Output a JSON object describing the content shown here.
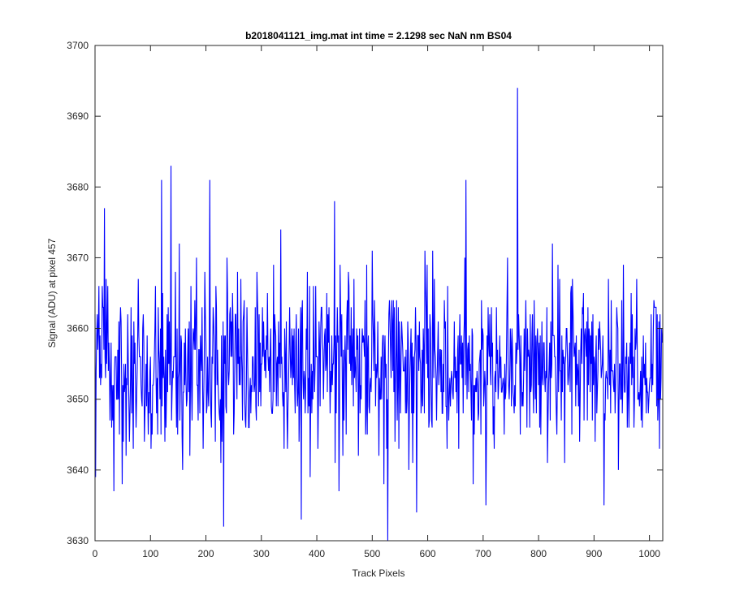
{
  "chart_data": {
    "type": "line",
    "title": "b2018041121_img.mat int time = 2.1298 sec  NaN nm BS04",
    "xlabel": "Track Pixels",
    "ylabel": "Signal (ADU) at pixel 457",
    "xlim": [
      0,
      1024
    ],
    "ylim": [
      3630,
      3700
    ],
    "xticks": [
      0,
      100,
      200,
      300,
      400,
      500,
      600,
      700,
      800,
      900,
      1000
    ],
    "yticks": [
      3630,
      3640,
      3650,
      3660,
      3670,
      3680,
      3690,
      3700
    ],
    "grid": false,
    "legend": "none",
    "box": true,
    "series": [
      {
        "color": "#0000ff",
        "n_points": 1024,
        "mean": 3655,
        "approx_std": 6,
        "min": 3630,
        "max": 3694,
        "notable_points": [
          {
            "x": 1,
            "y": 3639
          },
          {
            "x": 17,
            "y": 3677
          },
          {
            "x": 34,
            "y": 3637
          },
          {
            "x": 120,
            "y": 3681
          },
          {
            "x": 137,
            "y": 3683
          },
          {
            "x": 207,
            "y": 3681
          },
          {
            "x": 232,
            "y": 3632
          },
          {
            "x": 372,
            "y": 3633
          },
          {
            "x": 432,
            "y": 3678
          },
          {
            "x": 528,
            "y": 3630
          },
          {
            "x": 580,
            "y": 3634
          },
          {
            "x": 669,
            "y": 3681
          },
          {
            "x": 705,
            "y": 3635
          },
          {
            "x": 762,
            "y": 3694
          },
          {
            "x": 918,
            "y": 3635
          },
          {
            "x": 1018,
            "y": 3643
          }
        ]
      }
    ]
  }
}
